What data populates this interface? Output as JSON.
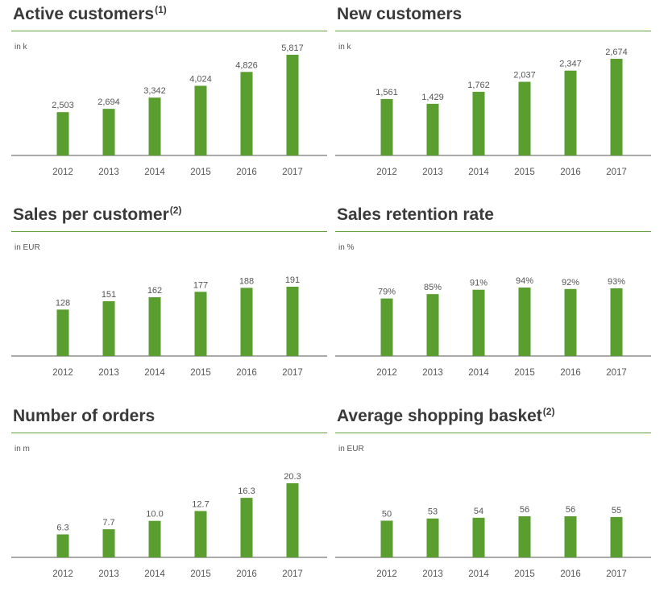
{
  "colors": {
    "bar": "#5a9e2f",
    "rule": "#62a13b",
    "axis": "#555555"
  },
  "years": [
    "2012",
    "2013",
    "2014",
    "2015",
    "2016",
    "2017"
  ],
  "chart_data": [
    {
      "type": "bar",
      "title": "Active customers",
      "footnote": "(1)",
      "unit": "in k",
      "categories": [
        "2012",
        "2013",
        "2014",
        "2015",
        "2016",
        "2017"
      ],
      "values": [
        2503,
        2694,
        3342,
        4024,
        4826,
        5817
      ],
      "labels": [
        "2,503",
        "2,694",
        "3,342",
        "4,024",
        "4,826",
        "5,817"
      ],
      "ylim": [
        0,
        5817
      ]
    },
    {
      "type": "bar",
      "title": "New customers",
      "footnote": "",
      "unit": "in k",
      "categories": [
        "2012",
        "2013",
        "2014",
        "2015",
        "2016",
        "2017"
      ],
      "values": [
        1561,
        1429,
        1762,
        2037,
        2347,
        2674
      ],
      "labels": [
        "1,561",
        "1,429",
        "1,762",
        "2,037",
        "2,347",
        "2,674"
      ],
      "ylim": [
        0,
        2674
      ]
    },
    {
      "type": "bar",
      "title": "Sales per customer",
      "footnote": "(2)",
      "unit": "in EUR",
      "categories": [
        "2012",
        "2013",
        "2014",
        "2015",
        "2016",
        "2017"
      ],
      "values": [
        128,
        151,
        162,
        177,
        188,
        191
      ],
      "labels": [
        "128",
        "151",
        "162",
        "177",
        "188",
        "191"
      ],
      "ylim": [
        0,
        191
      ]
    },
    {
      "type": "bar",
      "title": "Sales retention rate",
      "footnote": "",
      "unit": "in %",
      "categories": [
        "2012",
        "2013",
        "2014",
        "2015",
        "2016",
        "2017"
      ],
      "values": [
        79,
        85,
        91,
        94,
        92,
        93
      ],
      "labels": [
        "79%",
        "85%",
        "91%",
        "94%",
        "92%",
        "93%"
      ],
      "ylim": [
        0,
        94
      ]
    },
    {
      "type": "bar",
      "title": "Number of orders",
      "footnote": "",
      "unit": "in m",
      "categories": [
        "2012",
        "2013",
        "2014",
        "2015",
        "2016",
        "2017"
      ],
      "values": [
        6.3,
        7.7,
        10.0,
        12.7,
        16.3,
        20.3
      ],
      "labels": [
        "6.3",
        "7.7",
        "10.0",
        "12.7",
        "16.3",
        "20.3"
      ],
      "ylim": [
        0,
        20.3
      ]
    },
    {
      "type": "bar",
      "title": "Average shopping basket",
      "footnote": "(2)",
      "unit": "in EUR",
      "categories": [
        "2012",
        "2013",
        "2014",
        "2015",
        "2016",
        "2017"
      ],
      "values": [
        50,
        53,
        54,
        56,
        56,
        55
      ],
      "labels": [
        "50",
        "53",
        "54",
        "56",
        "56",
        "55"
      ],
      "ylim": [
        0,
        56
      ]
    }
  ]
}
